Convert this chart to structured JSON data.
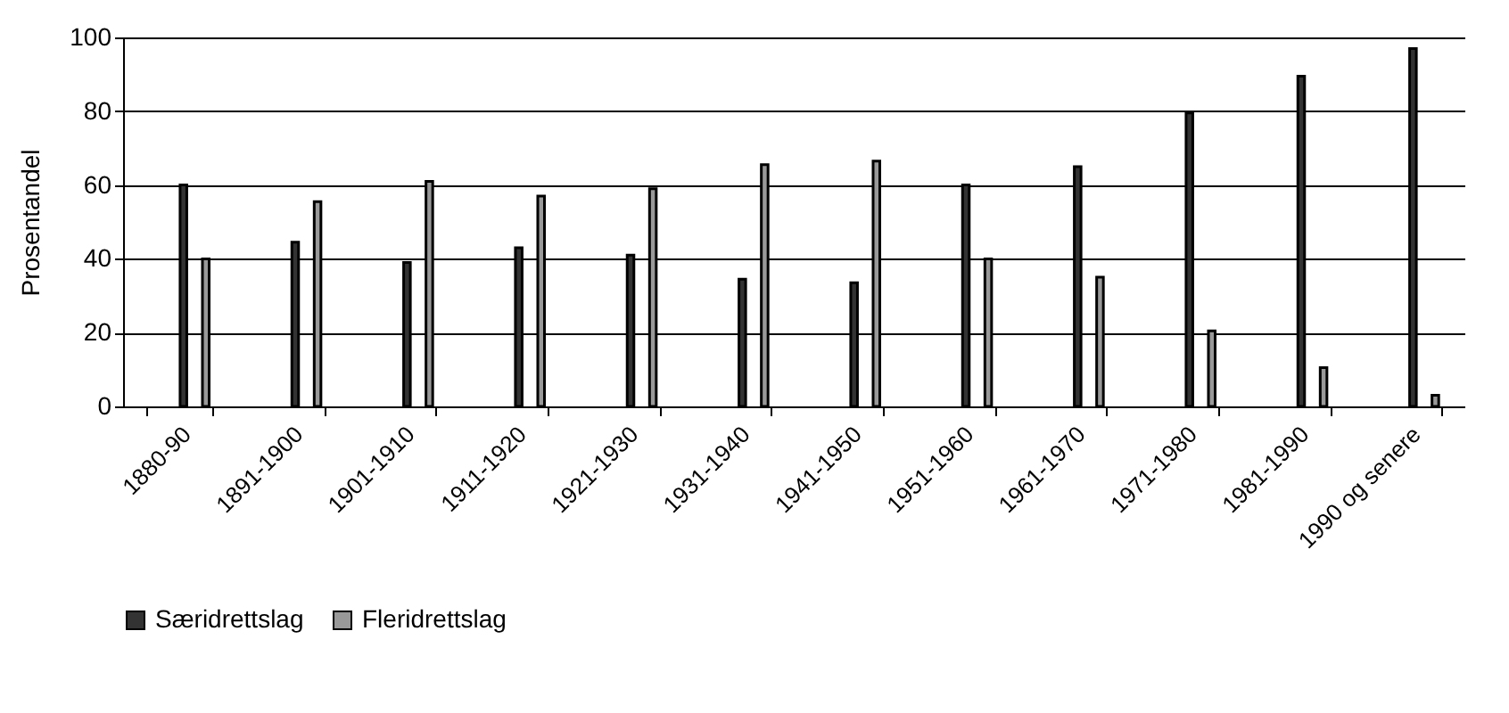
{
  "chart_data": {
    "type": "bar",
    "ylabel": "Prosentandel",
    "categories": [
      "1880-90",
      "1891-1900",
      "1901-1910",
      "1911-1920",
      "1921-1930",
      "1931-1940",
      "1941-1950",
      "1951-1960",
      "1961-1970",
      "1971-1980",
      "1981-1990",
      "1990 og senere"
    ],
    "series": [
      {
        "name": "Særidrettslag",
        "color": "#333333",
        "values": [
          60,
          44.5,
          39,
          43,
          41,
          34.5,
          33.5,
          60,
          65,
          79.5,
          89.5,
          97
        ]
      },
      {
        "name": "Fleridrettslag",
        "color": "#999999",
        "values": [
          40,
          55.5,
          61,
          57,
          59,
          65.5,
          66.5,
          40,
          35,
          20.5,
          10.5,
          3
        ]
      }
    ],
    "ylim": [
      0,
      100
    ],
    "yticks": [
      0,
      20,
      40,
      60,
      80,
      100
    ],
    "grid": "y",
    "legend": "bottom"
  }
}
